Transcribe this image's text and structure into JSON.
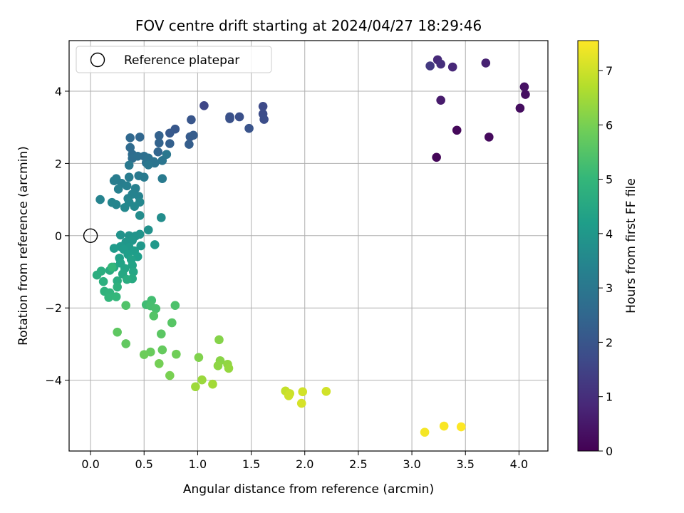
{
  "chart_data": {
    "type": "scatter",
    "title": "FOV centre drift starting at 2024/04/27 18:29:46",
    "xlabel": "Angular distance from reference (arcmin)",
    "ylabel": "Rotation from reference (arcmin)",
    "xlim": [
      -0.2,
      4.27
    ],
    "ylim": [
      -5.96,
      5.4
    ],
    "xticks": [
      0.0,
      0.5,
      1.0,
      1.5,
      2.0,
      2.5,
      3.0,
      3.5,
      4.0
    ],
    "xtick_labels": [
      "0.0",
      "0.5",
      "1.0",
      "1.5",
      "2.0",
      "2.5",
      "3.0",
      "3.5",
      "4.0"
    ],
    "yticks": [
      -4,
      -2,
      0,
      2,
      4
    ],
    "ytick_labels": [
      "−4",
      "−2",
      "0",
      "2",
      "4"
    ],
    "grid": true,
    "legend": {
      "position": "top-left",
      "entries": [
        {
          "label": "Reference platepar",
          "marker": "open-circle"
        }
      ]
    },
    "reference_point": {
      "x": 0.0,
      "y": 0.0
    },
    "colorbar": {
      "label": "Hours from first FF file",
      "range": [
        0,
        7.55
      ],
      "colormap": "viridis",
      "ticks": [
        0,
        1,
        2,
        3,
        4,
        5,
        6,
        7
      ],
      "tick_labels": [
        "0",
        "1",
        "2",
        "3",
        "4",
        "5",
        "6",
        "7"
      ]
    },
    "points": [
      {
        "x": 3.23,
        "y": 2.17,
        "c": 0.1
      },
      {
        "x": 3.42,
        "y": 2.92,
        "c": 0.15
      },
      {
        "x": 3.72,
        "y": 2.73,
        "c": 0.2
      },
      {
        "x": 4.01,
        "y": 3.53,
        "c": 0.25
      },
      {
        "x": 4.06,
        "y": 3.91,
        "c": 0.3
      },
      {
        "x": 4.05,
        "y": 4.12,
        "c": 0.35
      },
      {
        "x": 3.27,
        "y": 3.75,
        "c": 0.55
      },
      {
        "x": 3.69,
        "y": 4.78,
        "c": 0.7
      },
      {
        "x": 3.38,
        "y": 4.67,
        "c": 0.85
      },
      {
        "x": 3.24,
        "y": 4.87,
        "c": 0.9
      },
      {
        "x": 3.27,
        "y": 4.75,
        "c": 1.0
      },
      {
        "x": 3.17,
        "y": 4.7,
        "c": 1.25
      },
      {
        "x": 1.06,
        "y": 3.6,
        "c": 1.6
      },
      {
        "x": 1.61,
        "y": 3.58,
        "c": 1.7
      },
      {
        "x": 1.61,
        "y": 3.37,
        "c": 1.75
      },
      {
        "x": 1.62,
        "y": 3.22,
        "c": 1.8
      },
      {
        "x": 1.39,
        "y": 3.29,
        "c": 1.85
      },
      {
        "x": 1.3,
        "y": 3.29,
        "c": 1.9
      },
      {
        "x": 1.3,
        "y": 3.24,
        "c": 1.9
      },
      {
        "x": 1.48,
        "y": 2.97,
        "c": 1.95
      },
      {
        "x": 0.94,
        "y": 3.21,
        "c": 2.0
      },
      {
        "x": 0.79,
        "y": 2.95,
        "c": 2.05
      },
      {
        "x": 0.74,
        "y": 2.84,
        "c": 2.1
      },
      {
        "x": 0.93,
        "y": 2.74,
        "c": 2.15
      },
      {
        "x": 0.96,
        "y": 2.78,
        "c": 2.2
      },
      {
        "x": 0.92,
        "y": 2.53,
        "c": 2.25
      },
      {
        "x": 0.74,
        "y": 2.55,
        "c": 2.3
      },
      {
        "x": 0.64,
        "y": 2.77,
        "c": 2.35
      },
      {
        "x": 0.64,
        "y": 2.57,
        "c": 2.4
      },
      {
        "x": 0.63,
        "y": 2.32,
        "c": 2.45
      },
      {
        "x": 0.46,
        "y": 2.73,
        "c": 2.5
      },
      {
        "x": 0.37,
        "y": 2.71,
        "c": 2.55
      },
      {
        "x": 0.37,
        "y": 2.44,
        "c": 2.6
      },
      {
        "x": 0.39,
        "y": 2.25,
        "c": 2.65
      },
      {
        "x": 0.39,
        "y": 2.14,
        "c": 2.7
      },
      {
        "x": 0.44,
        "y": 2.2,
        "c": 2.75
      },
      {
        "x": 0.5,
        "y": 2.2,
        "c": 2.75
      },
      {
        "x": 0.54,
        "y": 2.15,
        "c": 2.8
      },
      {
        "x": 0.52,
        "y": 2.02,
        "c": 2.85
      },
      {
        "x": 0.59,
        "y": 2.05,
        "c": 2.85
      },
      {
        "x": 0.6,
        "y": 2.01,
        "c": 2.9
      },
      {
        "x": 0.67,
        "y": 2.08,
        "c": 2.95
      },
      {
        "x": 0.71,
        "y": 2.25,
        "c": 3.0
      },
      {
        "x": 0.54,
        "y": 1.96,
        "c": 3.0
      },
      {
        "x": 0.36,
        "y": 1.95,
        "c": 3.05
      },
      {
        "x": 0.45,
        "y": 1.66,
        "c": 3.05
      },
      {
        "x": 0.5,
        "y": 1.62,
        "c": 3.1
      },
      {
        "x": 0.67,
        "y": 1.58,
        "c": 3.1
      },
      {
        "x": 0.36,
        "y": 1.62,
        "c": 3.15
      },
      {
        "x": 0.24,
        "y": 1.58,
        "c": 3.15
      },
      {
        "x": 0.22,
        "y": 1.52,
        "c": 3.2
      },
      {
        "x": 0.29,
        "y": 1.45,
        "c": 3.2
      },
      {
        "x": 0.34,
        "y": 1.38,
        "c": 3.25
      },
      {
        "x": 0.26,
        "y": 1.29,
        "c": 3.3
      },
      {
        "x": 0.42,
        "y": 1.31,
        "c": 3.3
      },
      {
        "x": 0.39,
        "y": 1.15,
        "c": 3.35
      },
      {
        "x": 0.45,
        "y": 1.09,
        "c": 3.35
      },
      {
        "x": 0.35,
        "y": 1.03,
        "c": 3.4
      },
      {
        "x": 0.09,
        "y": 1.0,
        "c": 3.4
      },
      {
        "x": 0.2,
        "y": 0.92,
        "c": 3.45
      },
      {
        "x": 0.24,
        "y": 0.86,
        "c": 3.45
      },
      {
        "x": 0.36,
        "y": 0.93,
        "c": 3.5
      },
      {
        "x": 0.46,
        "y": 0.93,
        "c": 3.5
      },
      {
        "x": 0.32,
        "y": 0.78,
        "c": 3.55
      },
      {
        "x": 0.41,
        "y": 0.81,
        "c": 3.55
      },
      {
        "x": 0.46,
        "y": 0.56,
        "c": 3.65
      },
      {
        "x": 0.66,
        "y": 0.5,
        "c": 3.7
      },
      {
        "x": 0.54,
        "y": 0.16,
        "c": 3.8
      },
      {
        "x": 0.28,
        "y": 0.02,
        "c": 3.85
      },
      {
        "x": 0.36,
        "y": 0.0,
        "c": 3.85
      },
      {
        "x": 0.42,
        "y": -0.01,
        "c": 3.9
      },
      {
        "x": 0.46,
        "y": 0.04,
        "c": 3.9
      },
      {
        "x": 0.39,
        "y": -0.13,
        "c": 3.95
      },
      {
        "x": 0.33,
        "y": -0.18,
        "c": 3.95
      },
      {
        "x": 0.47,
        "y": -0.28,
        "c": 4.0
      },
      {
        "x": 0.6,
        "y": -0.25,
        "c": 4.0
      },
      {
        "x": 0.28,
        "y": -0.3,
        "c": 4.05
      },
      {
        "x": 0.36,
        "y": -0.32,
        "c": 4.05
      },
      {
        "x": 0.22,
        "y": -0.35,
        "c": 4.1
      },
      {
        "x": 0.31,
        "y": -0.38,
        "c": 4.1
      },
      {
        "x": 0.41,
        "y": -0.42,
        "c": 4.15
      },
      {
        "x": 0.35,
        "y": -0.52,
        "c": 4.2
      },
      {
        "x": 0.44,
        "y": -0.58,
        "c": 4.2
      },
      {
        "x": 0.27,
        "y": -0.62,
        "c": 4.25
      },
      {
        "x": 0.38,
        "y": -0.66,
        "c": 4.3
      },
      {
        "x": 0.28,
        "y": -0.76,
        "c": 4.35
      },
      {
        "x": 0.39,
        "y": -0.82,
        "c": 4.35
      },
      {
        "x": 0.32,
        "y": -0.91,
        "c": 4.4
      },
      {
        "x": 0.4,
        "y": -1.0,
        "c": 4.45
      },
      {
        "x": 0.22,
        "y": -0.87,
        "c": 4.5
      },
      {
        "x": 0.3,
        "y": -1.06,
        "c": 4.5
      },
      {
        "x": 0.39,
        "y": -1.19,
        "c": 4.55
      },
      {
        "x": 0.18,
        "y": -0.96,
        "c": 4.6
      },
      {
        "x": 0.25,
        "y": -1.25,
        "c": 4.65
      },
      {
        "x": 0.34,
        "y": -1.21,
        "c": 4.65
      },
      {
        "x": 0.06,
        "y": -1.09,
        "c": 4.7
      },
      {
        "x": 0.1,
        "y": -0.98,
        "c": 4.7
      },
      {
        "x": 0.12,
        "y": -1.27,
        "c": 4.75
      },
      {
        "x": 0.25,
        "y": -1.42,
        "c": 4.8
      },
      {
        "x": 0.13,
        "y": -1.54,
        "c": 4.85
      },
      {
        "x": 0.18,
        "y": -1.58,
        "c": 4.9
      },
      {
        "x": 0.17,
        "y": -1.71,
        "c": 4.95
      },
      {
        "x": 0.24,
        "y": -1.69,
        "c": 5.0
      },
      {
        "x": 0.2,
        "y": -0.87,
        "c": 5.0
      },
      {
        "x": 0.52,
        "y": -1.91,
        "c": 5.2
      },
      {
        "x": 0.57,
        "y": -1.79,
        "c": 5.25
      },
      {
        "x": 0.56,
        "y": -1.94,
        "c": 5.3
      },
      {
        "x": 0.61,
        "y": -2.02,
        "c": 5.35
      },
      {
        "x": 0.79,
        "y": -1.93,
        "c": 5.4
      },
      {
        "x": 0.33,
        "y": -1.93,
        "c": 5.45
      },
      {
        "x": 0.59,
        "y": -2.22,
        "c": 5.5
      },
      {
        "x": 0.76,
        "y": -2.41,
        "c": 5.55
      },
      {
        "x": 0.66,
        "y": -2.72,
        "c": 5.6
      },
      {
        "x": 0.25,
        "y": -2.67,
        "c": 5.65
      },
      {
        "x": 0.33,
        "y": -2.99,
        "c": 5.7
      },
      {
        "x": 0.67,
        "y": -3.16,
        "c": 5.75
      },
      {
        "x": 0.56,
        "y": -3.22,
        "c": 5.8
      },
      {
        "x": 0.5,
        "y": -3.29,
        "c": 5.85
      },
      {
        "x": 0.8,
        "y": -3.28,
        "c": 5.9
      },
      {
        "x": 0.64,
        "y": -3.54,
        "c": 5.95
      },
      {
        "x": 0.74,
        "y": -3.87,
        "c": 6.0
      },
      {
        "x": 1.01,
        "y": -3.37,
        "c": 6.1
      },
      {
        "x": 1.2,
        "y": -2.88,
        "c": 6.15
      },
      {
        "x": 1.21,
        "y": -3.46,
        "c": 6.2
      },
      {
        "x": 1.19,
        "y": -3.6,
        "c": 6.25
      },
      {
        "x": 1.28,
        "y": -3.56,
        "c": 6.3
      },
      {
        "x": 1.29,
        "y": -3.67,
        "c": 6.35
      },
      {
        "x": 1.04,
        "y": -3.99,
        "c": 6.4
      },
      {
        "x": 0.98,
        "y": -4.18,
        "c": 6.45
      },
      {
        "x": 1.14,
        "y": -4.11,
        "c": 6.5
      },
      {
        "x": 1.82,
        "y": -4.3,
        "c": 6.9
      },
      {
        "x": 1.86,
        "y": -4.37,
        "c": 6.95
      },
      {
        "x": 1.85,
        "y": -4.43,
        "c": 7.0
      },
      {
        "x": 1.98,
        "y": -4.32,
        "c": 7.05
      },
      {
        "x": 2.2,
        "y": -4.31,
        "c": 7.05
      },
      {
        "x": 1.97,
        "y": -4.64,
        "c": 7.1
      },
      {
        "x": 3.12,
        "y": -5.44,
        "c": 7.45
      },
      {
        "x": 3.3,
        "y": -5.27,
        "c": 7.5
      },
      {
        "x": 3.46,
        "y": -5.29,
        "c": 7.55
      }
    ]
  }
}
